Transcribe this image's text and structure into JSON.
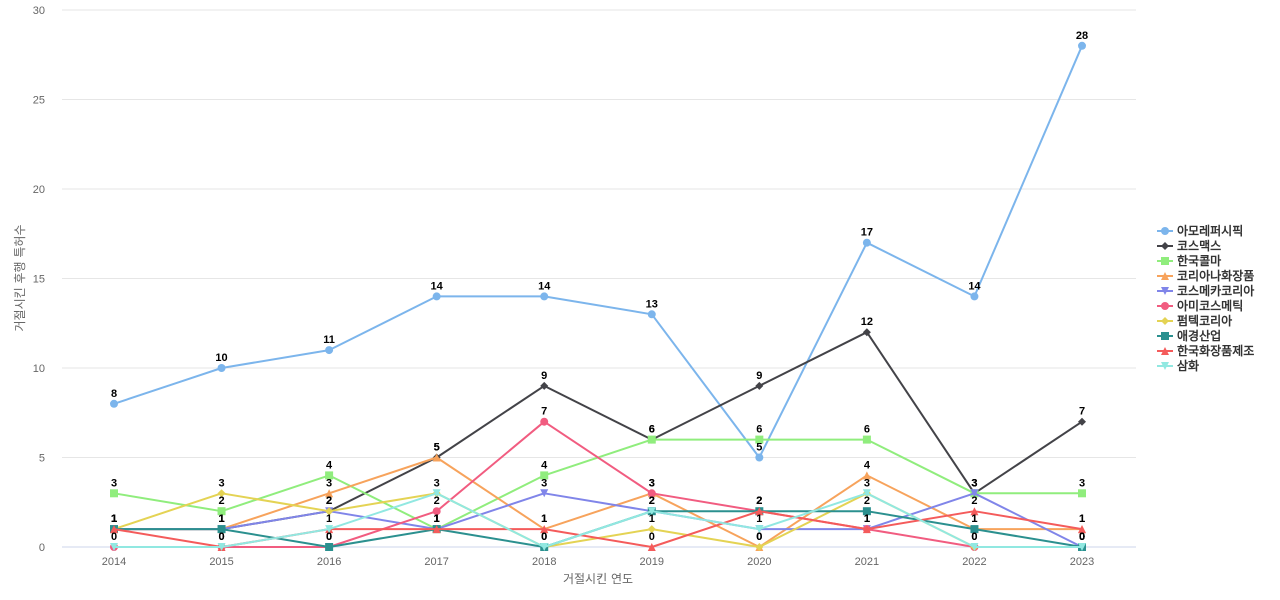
{
  "chart_data": {
    "type": "line",
    "title": "",
    "xlabel": "거절시킨 연도",
    "ylabel": "거절시킨 후행 특허수",
    "x": [
      "2014",
      "2015",
      "2016",
      "2017",
      "2018",
      "2019",
      "2020",
      "2021",
      "2022",
      "2023"
    ],
    "ylim": [
      0,
      30
    ],
    "yticks": [
      0,
      5,
      10,
      15,
      20,
      25,
      30
    ],
    "grid": true,
    "legend": "right",
    "series": [
      {
        "name": "아모레퍼시픽",
        "color": "#7cb5ec",
        "marker": "circle",
        "values": [
          8,
          10,
          11,
          14,
          14,
          13,
          5,
          17,
          14,
          28
        ],
        "labels": true
      },
      {
        "name": "코스맥스",
        "color": "#434348",
        "marker": "diamond",
        "values": [
          1,
          1,
          2,
          5,
          9,
          6,
          9,
          12,
          3,
          7
        ],
        "labels": true
      },
      {
        "name": "한국콜마",
        "color": "#90ed7d",
        "marker": "square",
        "values": [
          3,
          2,
          4,
          1,
          4,
          6,
          6,
          6,
          3,
          3
        ],
        "labels": true
      },
      {
        "name": "코리아나화장품",
        "color": "#f7a35c",
        "marker": "triangle",
        "values": [
          1,
          1,
          3,
          5,
          1,
          3,
          0,
          4,
          1,
          1
        ],
        "labels": true
      },
      {
        "name": "코스메카코리아",
        "color": "#8085e9",
        "marker": "triangle-down",
        "values": [
          1,
          1,
          2,
          1,
          3,
          2,
          1,
          1,
          3,
          0
        ],
        "labels": true
      },
      {
        "name": "아미코스메틱",
        "color": "#f15c80",
        "marker": "circle",
        "values": [
          0,
          0,
          0,
          2,
          7,
          3,
          2,
          1,
          0,
          0
        ],
        "labels": true
      },
      {
        "name": "펌텍코리아",
        "color": "#e4d354",
        "marker": "diamond",
        "values": [
          1,
          3,
          2,
          3,
          0,
          1,
          0,
          3,
          0,
          0
        ],
        "labels": true
      },
      {
        "name": "애경산업",
        "color": "#2b908f",
        "marker": "square",
        "values": [
          1,
          1,
          0,
          1,
          0,
          2,
          2,
          2,
          1,
          0
        ],
        "labels": true
      },
      {
        "name": "한국화장품제조",
        "color": "#f45b5b",
        "marker": "triangle",
        "values": [
          1,
          0,
          1,
          1,
          1,
          0,
          2,
          1,
          2,
          1
        ],
        "labels": true
      },
      {
        "name": "삼화",
        "color": "#91e8e1",
        "marker": "triangle-down",
        "values": [
          0,
          0,
          1,
          3,
          0,
          2,
          1,
          3,
          0,
          0
        ],
        "labels": false
      }
    ]
  }
}
